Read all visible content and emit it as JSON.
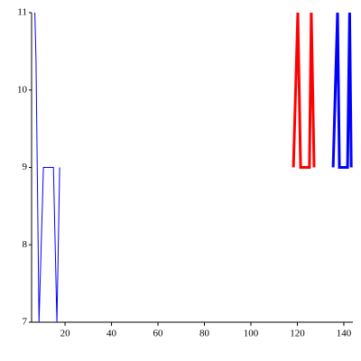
{
  "chart_data": {
    "type": "line",
    "xlim": [
      5.6,
      143.9
    ],
    "ylim": [
      7,
      11
    ],
    "xticks": [
      20,
      40,
      60,
      80,
      100,
      120,
      140
    ],
    "yticks": [
      7,
      8,
      9,
      10,
      11
    ],
    "series": [
      {
        "color": "#0000ff",
        "line_width": 1,
        "x": [
          7,
          7.5,
          8.8,
          10.7,
          15,
          16.5,
          17.7
        ],
        "values": [
          11,
          10.4,
          7,
          9,
          9,
          7,
          9
        ]
      },
      {
        "color": "#ff0000",
        "line_width": 3,
        "x": [
          118.3,
          120.2,
          121.4,
          125.2,
          126,
          127.2
        ],
        "values": [
          9,
          11,
          9,
          9,
          11,
          9
        ]
      },
      {
        "color": "#0000ff",
        "line_width": 3,
        "x": [
          135.4,
          137.3,
          138.1,
          141.6,
          142.5,
          143.2
        ],
        "values": [
          9,
          11,
          9,
          9,
          11,
          9
        ]
      }
    ]
  }
}
